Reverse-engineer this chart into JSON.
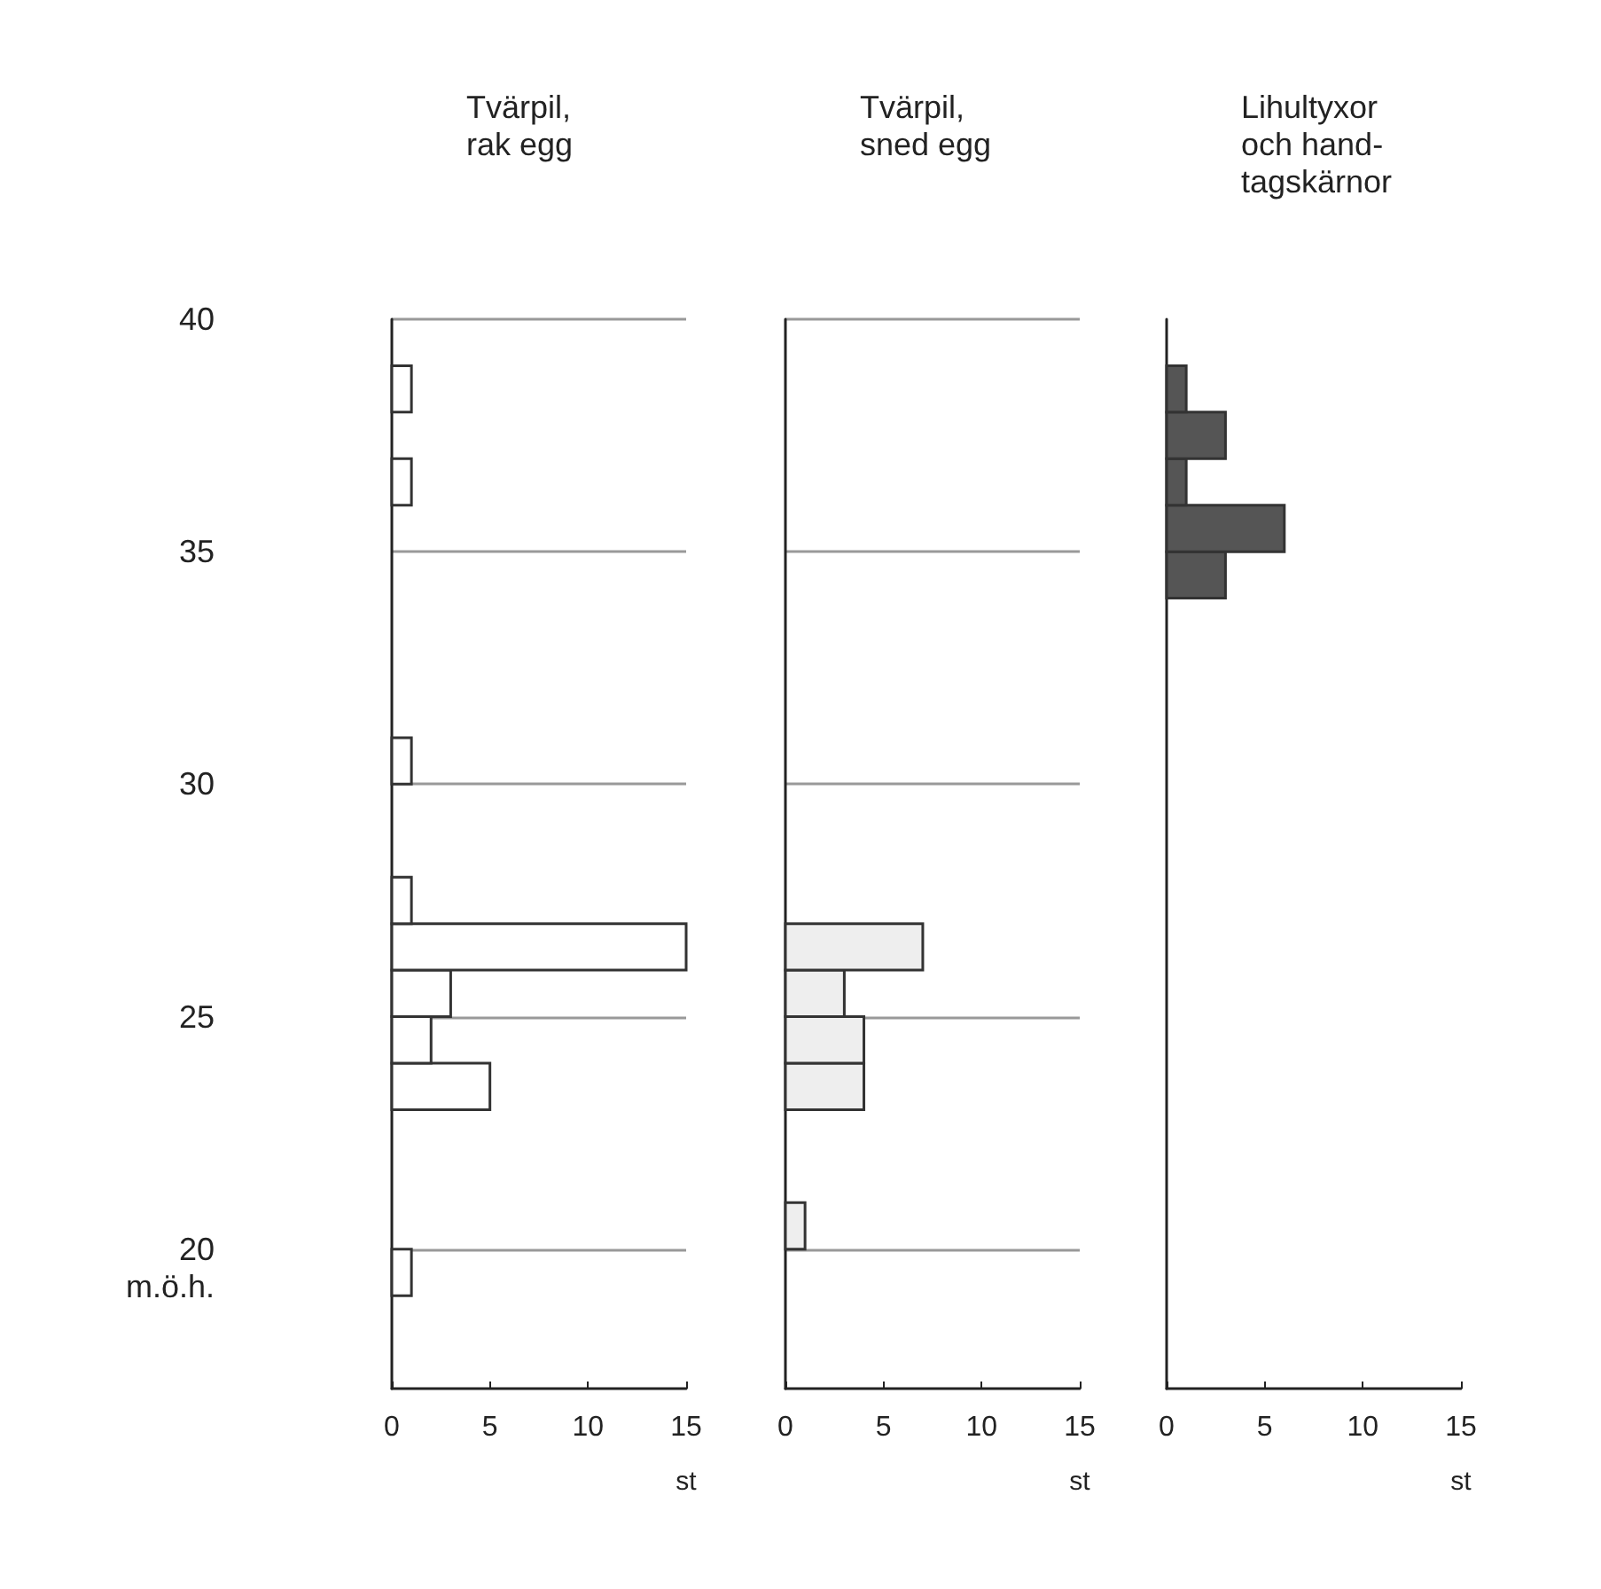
{
  "chart_data": [
    {
      "type": "histogram",
      "orientation": "horizontal",
      "title": "Tvärpil,\nrak egg",
      "xlabel": "st",
      "ylabel": "m.ö.h.",
      "color": "#ffffff",
      "bins": [
        19,
        20,
        21,
        22,
        23,
        24,
        25,
        26,
        27,
        28,
        29,
        30,
        31,
        32,
        33,
        34,
        35,
        36,
        37,
        38,
        39,
        40
      ],
      "values": [
        1,
        0,
        0,
        0,
        5,
        2,
        3,
        15,
        1,
        0,
        0,
        1,
        0,
        0,
        0,
        0,
        0,
        1,
        0,
        1,
        0
      ],
      "xlim": [
        0,
        15
      ],
      "xticks": [
        0,
        5,
        10,
        15
      ],
      "ylim": [
        17,
        40
      ],
      "yticks": [
        20,
        25,
        30,
        35,
        40
      ],
      "grid": "y"
    },
    {
      "type": "histogram",
      "orientation": "horizontal",
      "title": "Tvärpil,\nsned egg",
      "xlabel": "st",
      "color": "#eeeeee",
      "bins": [
        19,
        20,
        21,
        22,
        23,
        24,
        25,
        26,
        27,
        28,
        29,
        30,
        31,
        32,
        33,
        34,
        35,
        36,
        37,
        38,
        39,
        40
      ],
      "values": [
        0,
        1,
        0,
        0,
        4,
        4,
        3,
        7,
        0,
        0,
        0,
        0,
        0,
        0,
        0,
        0,
        0,
        0,
        0,
        0,
        0
      ],
      "xlim": [
        0,
        15
      ],
      "xticks": [
        0,
        5,
        10,
        15
      ],
      "ylim": [
        17,
        40
      ],
      "yticks": [
        20,
        25,
        30,
        35,
        40
      ],
      "grid": "y",
      "tick_labels": "x"
    },
    {
      "type": "histogram",
      "orientation": "horizontal",
      "title": "Lihultyxor\noch hand-\ntagskärnor",
      "xlabel": "st",
      "color": "#555555",
      "bins": [
        19,
        20,
        21,
        22,
        23,
        24,
        25,
        26,
        27,
        28,
        29,
        30,
        31,
        32,
        33,
        34,
        35,
        36,
        37,
        38,
        39,
        40
      ],
      "values": [
        0,
        0,
        0,
        0,
        0,
        0,
        0,
        0,
        0,
        0,
        0,
        0,
        0,
        0,
        0,
        3,
        6,
        1,
        3,
        1,
        0
      ],
      "xlim": [
        0,
        15
      ],
      "xticks": [
        0,
        5,
        10,
        15
      ],
      "ylim": [
        17,
        40
      ],
      "yticks": [
        20,
        25,
        30,
        35,
        40
      ],
      "tick_labels": "x"
    }
  ]
}
